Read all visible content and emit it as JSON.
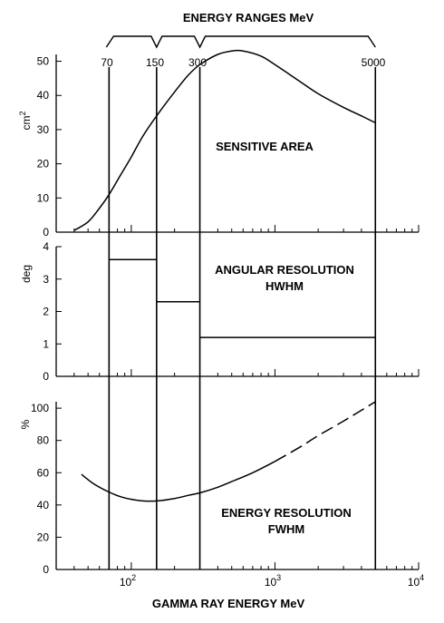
{
  "header": {
    "title": "ENERGY RANGES MeV",
    "range_labels": [
      "70",
      "150",
      "300",
      "5000"
    ]
  },
  "x_axis": {
    "label": "GAMMA RAY ENERGY MeV",
    "scale": "log",
    "range": [
      30,
      10000
    ],
    "tick_labels": [
      {
        "value": 100,
        "base": "10",
        "exp": "2"
      },
      {
        "value": 1000,
        "base": "10",
        "exp": "3"
      },
      {
        "value": 10000,
        "base": "10",
        "exp": "4"
      }
    ]
  },
  "panels": {
    "top": {
      "unit_base": "cm",
      "unit_exp": "2",
      "annotation": "SENSITIVE AREA",
      "ylim": [
        0,
        52
      ],
      "y_ticks": [
        "0",
        "10",
        "20",
        "30",
        "40",
        "50"
      ]
    },
    "middle": {
      "unit": "deg",
      "annotation_line1": "ANGULAR RESOLUTION",
      "annotation_line2": "HWHM",
      "ylim": [
        0,
        4
      ],
      "y_ticks": [
        "0",
        "1",
        "2",
        "3",
        "4"
      ]
    },
    "bottom": {
      "unit": "%",
      "annotation_line1": "ENERGY RESOLUTION",
      "annotation_line2": "FWHM",
      "ylim": [
        0,
        104
      ],
      "y_ticks": [
        "0",
        "20",
        "40",
        "60",
        "80",
        "100"
      ]
    }
  },
  "chart_data": [
    {
      "type": "line",
      "title": "SENSITIVE AREA",
      "xlabel": "GAMMA RAY ENERGY MeV",
      "ylabel": "cm²",
      "x_scale": "log",
      "xlim": [
        30,
        10000
      ],
      "ylim": [
        0,
        52
      ],
      "series": [
        {
          "x": [
            40,
            50,
            60,
            70,
            85,
            100,
            120,
            150,
            200,
            250,
            300,
            400,
            500,
            600,
            800,
            1000,
            1500,
            2000,
            3000,
            4000,
            5000
          ],
          "y": [
            0.5,
            3,
            7,
            11,
            17,
            22,
            28,
            34,
            41,
            46,
            49,
            52,
            53,
            53,
            51.5,
            49,
            44,
            40.5,
            36.5,
            34,
            32
          ]
        }
      ]
    },
    {
      "type": "line",
      "title": "ANGULAR RESOLUTION HWHM",
      "xlabel": "GAMMA RAY ENERGY MeV",
      "ylabel": "deg",
      "x_scale": "log",
      "xlim": [
        30,
        10000
      ],
      "ylim": [
        0,
        4
      ],
      "steps": [
        {
          "x_start": 70,
          "x_end": 150,
          "y": 3.6
        },
        {
          "x_start": 150,
          "x_end": 300,
          "y": 2.3
        },
        {
          "x_start": 300,
          "x_end": 5000,
          "y": 1.2
        }
      ]
    },
    {
      "type": "line",
      "title": "ENERGY RESOLUTION FWHM",
      "xlabel": "GAMMA RAY ENERGY MeV",
      "ylabel": "%",
      "x_scale": "log",
      "xlim": [
        30,
        10000
      ],
      "ylim": [
        0,
        104
      ],
      "series": [
        {
          "style": "solid",
          "x": [
            45,
            55,
            70,
            85,
            100,
            120,
            150,
            200,
            250,
            300,
            400,
            500,
            700,
            1000
          ],
          "y": [
            59,
            53,
            48,
            45,
            43.5,
            42.5,
            42.5,
            44,
            46,
            47.5,
            51,
            54.5,
            60,
            67
          ]
        },
        {
          "style": "dashed",
          "x": [
            1000,
            1500,
            2000,
            3000,
            5000
          ],
          "y": [
            67,
            76,
            83,
            92,
            104
          ]
        }
      ]
    }
  ]
}
